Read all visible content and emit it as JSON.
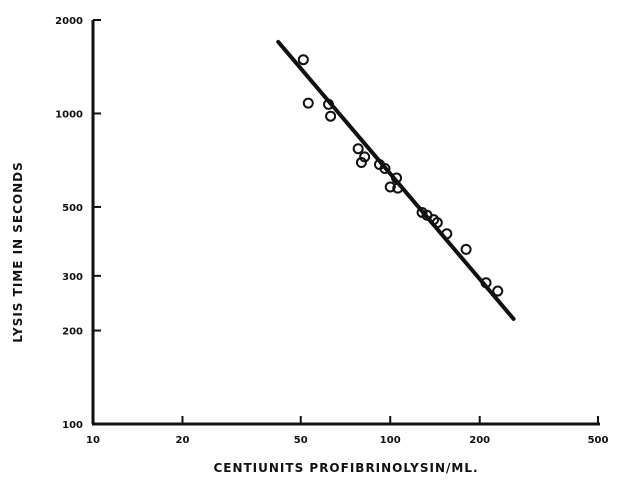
{
  "chart_data": {
    "type": "scatter",
    "title": "",
    "xlabel": "CENTIUNITS PROFIBRINOLYSIN/ML.",
    "ylabel": "LYSIS TIME IN SECONDS",
    "x_scale": "log",
    "y_scale": "log",
    "xlim": [
      10,
      500
    ],
    "ylim": [
      100,
      2000
    ],
    "x_ticks": [
      {
        "value": 10,
        "label": "10"
      },
      {
        "value": 20,
        "label": "20"
      },
      {
        "value": 50,
        "label": "50"
      },
      {
        "value": 100,
        "label": "100"
      },
      {
        "value": 200,
        "label": "200"
      },
      {
        "value": 500,
        "label": "500"
      }
    ],
    "y_ticks": [
      {
        "value": 100,
        "label": "100"
      },
      {
        "value": 200,
        "label": "200"
      },
      {
        "value": 300,
        "label": "300"
      },
      {
        "value": 500,
        "label": "500"
      },
      {
        "value": 1000,
        "label": "1000"
      },
      {
        "value": 2000,
        "label": "2000"
      }
    ],
    "grid": false,
    "legend": "none",
    "series": [
      {
        "type": "scatter",
        "marker": "open-circle",
        "points": [
          {
            "x": 51,
            "y": 1490
          },
          {
            "x": 53,
            "y": 1080
          },
          {
            "x": 62,
            "y": 1070
          },
          {
            "x": 63,
            "y": 980
          },
          {
            "x": 78,
            "y": 770
          },
          {
            "x": 80,
            "y": 695
          },
          {
            "x": 82,
            "y": 725
          },
          {
            "x": 92,
            "y": 685
          },
          {
            "x": 96,
            "y": 665
          },
          {
            "x": 100,
            "y": 580
          },
          {
            "x": 105,
            "y": 620
          },
          {
            "x": 106,
            "y": 575
          },
          {
            "x": 128,
            "y": 480
          },
          {
            "x": 133,
            "y": 470
          },
          {
            "x": 140,
            "y": 455
          },
          {
            "x": 144,
            "y": 445
          },
          {
            "x": 155,
            "y": 410
          },
          {
            "x": 180,
            "y": 365
          },
          {
            "x": 210,
            "y": 285
          },
          {
            "x": 230,
            "y": 268
          }
        ]
      },
      {
        "type": "line",
        "points": [
          {
            "x": 42,
            "y": 1700
          },
          {
            "x": 260,
            "y": 218
          }
        ]
      }
    ],
    "colors": {
      "ink": "#111111",
      "background": "#ffffff"
    }
  }
}
